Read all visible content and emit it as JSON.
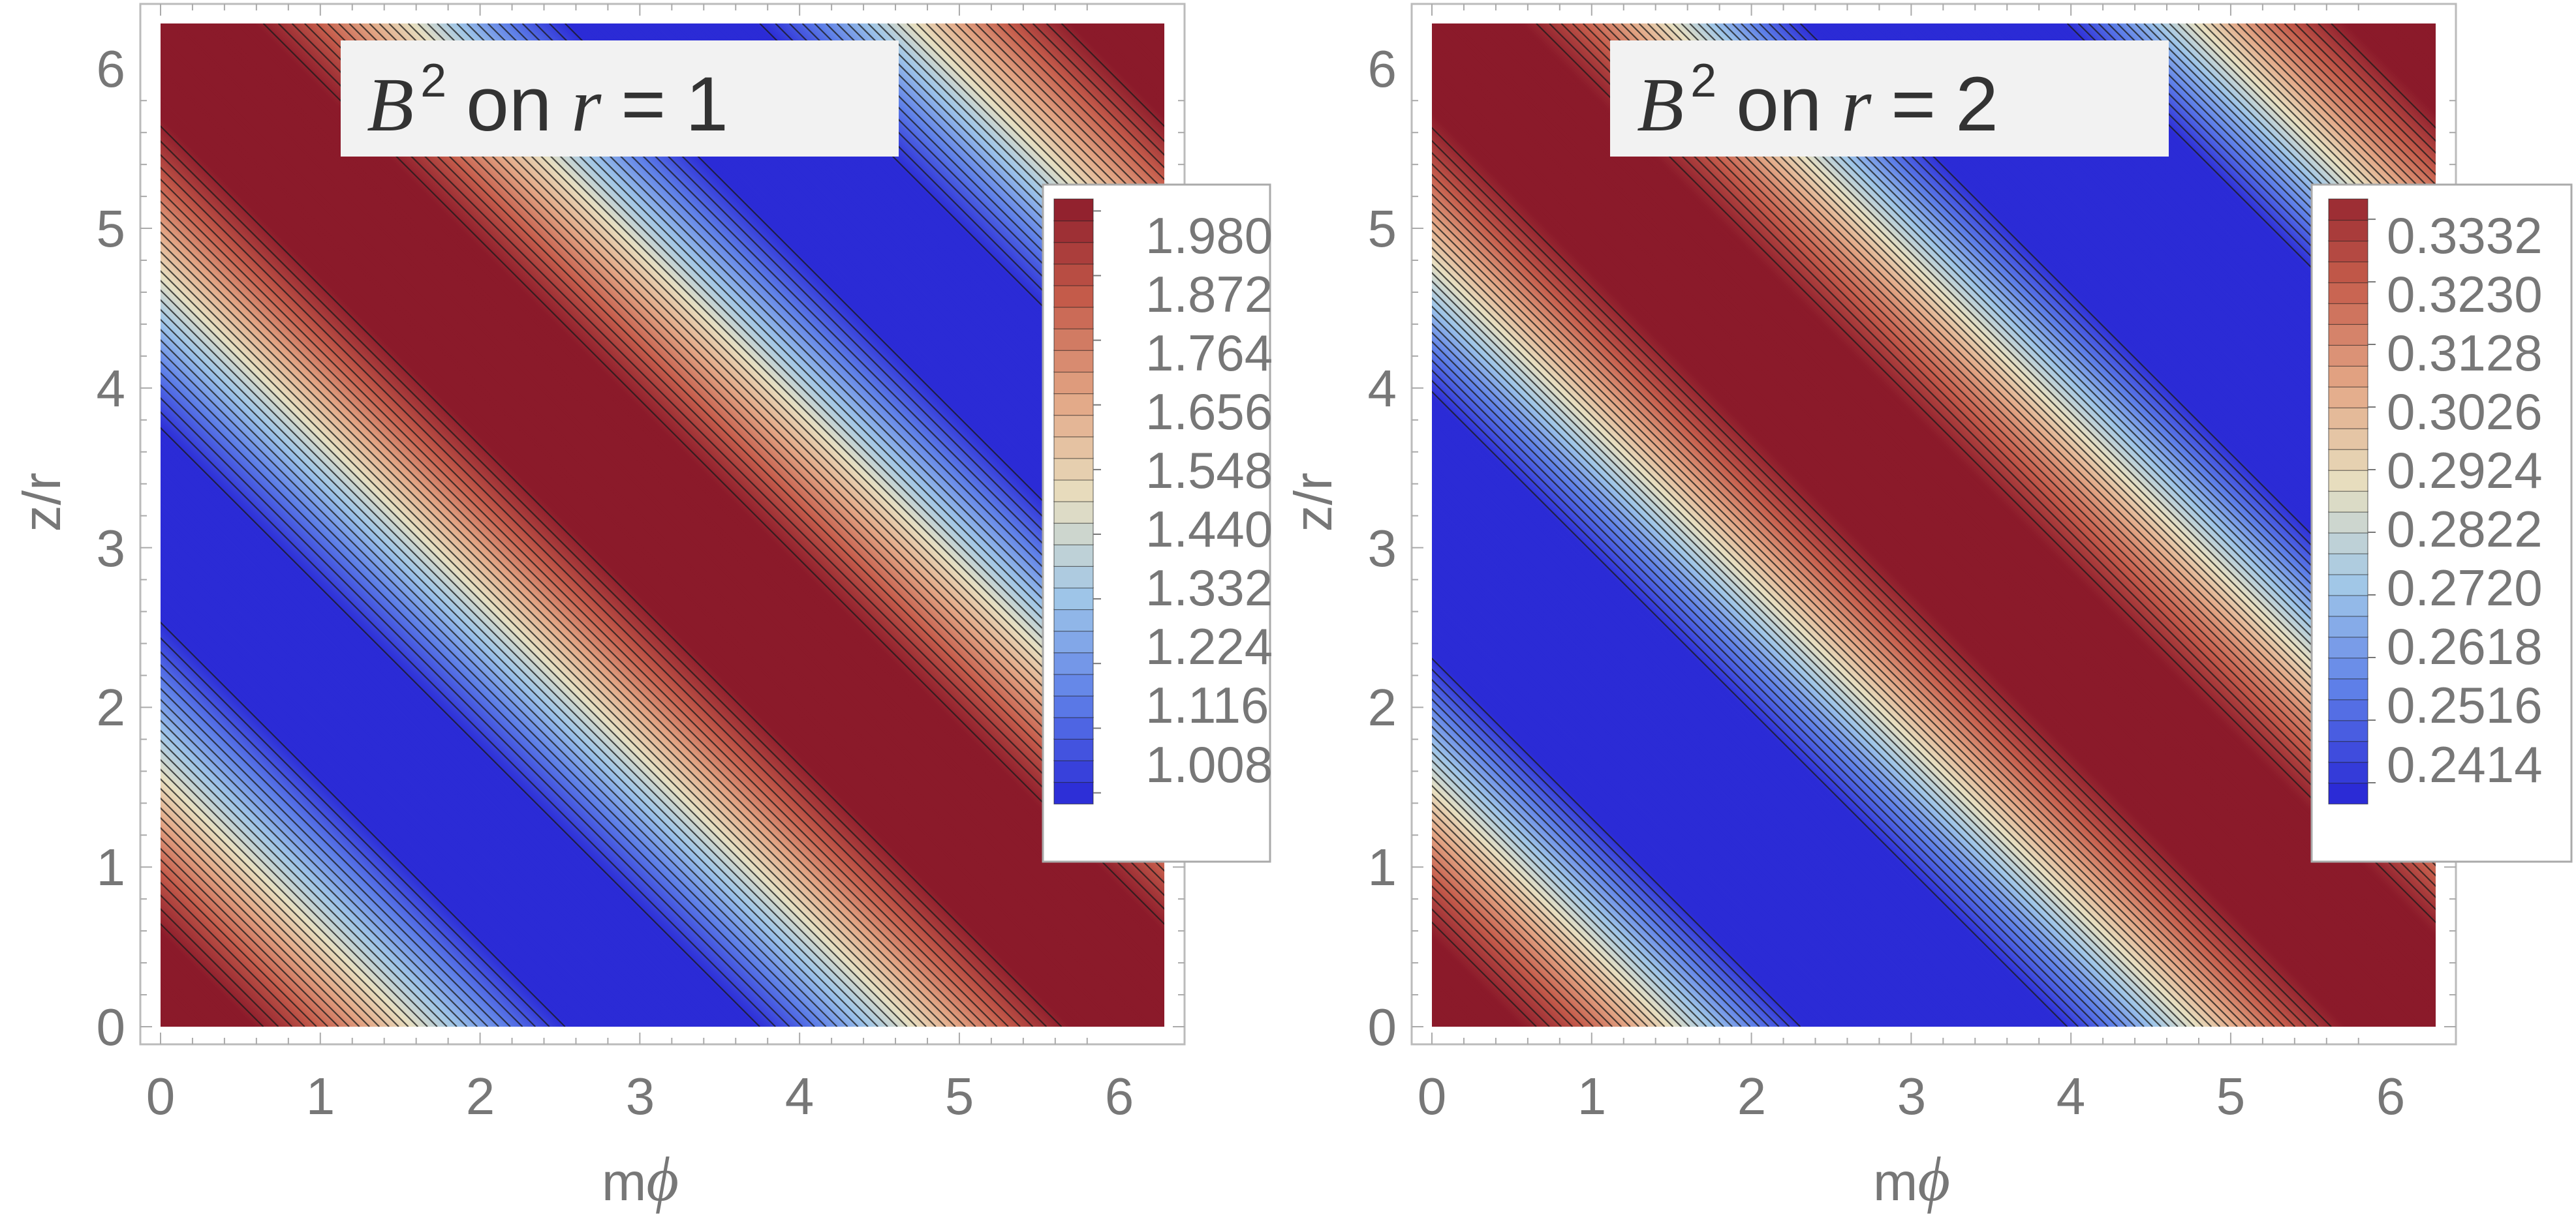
{
  "chart_data": [
    {
      "type": "heatmap",
      "subtype": "contour",
      "title": {
        "symbol": "B",
        "exponent": "2",
        "connector": "on",
        "variable": "r",
        "equals": "=",
        "value": "1"
      },
      "xlabel": {
        "prefix": "m",
        "symbol": "ϕ"
      },
      "ylabel": "z/r",
      "xlim": [
        0,
        6.283
      ],
      "ylim": [
        0,
        6.283
      ],
      "xticks": [
        "0",
        "1",
        "2",
        "3",
        "4",
        "5",
        "6"
      ],
      "yticks": [
        "0",
        "1",
        "2",
        "3",
        "4",
        "5",
        "6"
      ],
      "field": {
        "min": 0.9,
        "max": 2.1,
        "angle_offset": 1.571,
        "variable": "m*phi + z/r"
      },
      "clip": [
        1.0,
        2.0
      ],
      "contour_step": 0.036,
      "colormap": [
        "#2b2bd6",
        "#5e7fe8",
        "#9fc6e8",
        "#e7dfc0",
        "#e3a685",
        "#c55c4b",
        "#8b1a2a"
      ],
      "legend": {
        "placement": "right",
        "ticks": [
          "1.008",
          "1.116",
          "1.224",
          "1.332",
          "1.440",
          "1.548",
          "1.656",
          "1.764",
          "1.872",
          "1.980"
        ],
        "range": [
          0.99,
          2.0
        ]
      }
    },
    {
      "type": "heatmap",
      "subtype": "contour",
      "title": {
        "symbol": "B",
        "exponent": "2",
        "connector": "on",
        "variable": "r",
        "equals": "=",
        "value": "2"
      },
      "xlabel": {
        "prefix": "m",
        "symbol": "ϕ"
      },
      "ylabel": "z/r",
      "xlim": [
        0,
        6.283
      ],
      "ylim": [
        0,
        6.283
      ],
      "xticks": [
        "0",
        "1",
        "2",
        "3",
        "4",
        "5",
        "6"
      ],
      "yticks": [
        "0",
        "1",
        "2",
        "3",
        "4",
        "5",
        "6"
      ],
      "field": {
        "min": 0.22,
        "max": 0.35,
        "angle_offset": 1.571,
        "variable": "m*phi + z/r"
      },
      "clip": [
        0.24,
        0.34
      ],
      "contour_step": 0.0034,
      "colormap": [
        "#2b2bd6",
        "#5e7fe8",
        "#9fc6e8",
        "#e7dfc0",
        "#e3a685",
        "#c55c4b",
        "#8b1a2a"
      ],
      "legend": {
        "placement": "right",
        "ticks": [
          "0.2414",
          "0.2516",
          "0.2618",
          "0.2720",
          "0.2822",
          "0.2924",
          "0.3026",
          "0.3128",
          "0.3230",
          "0.3332"
        ],
        "range": [
          0.238,
          0.3365
        ]
      }
    }
  ]
}
